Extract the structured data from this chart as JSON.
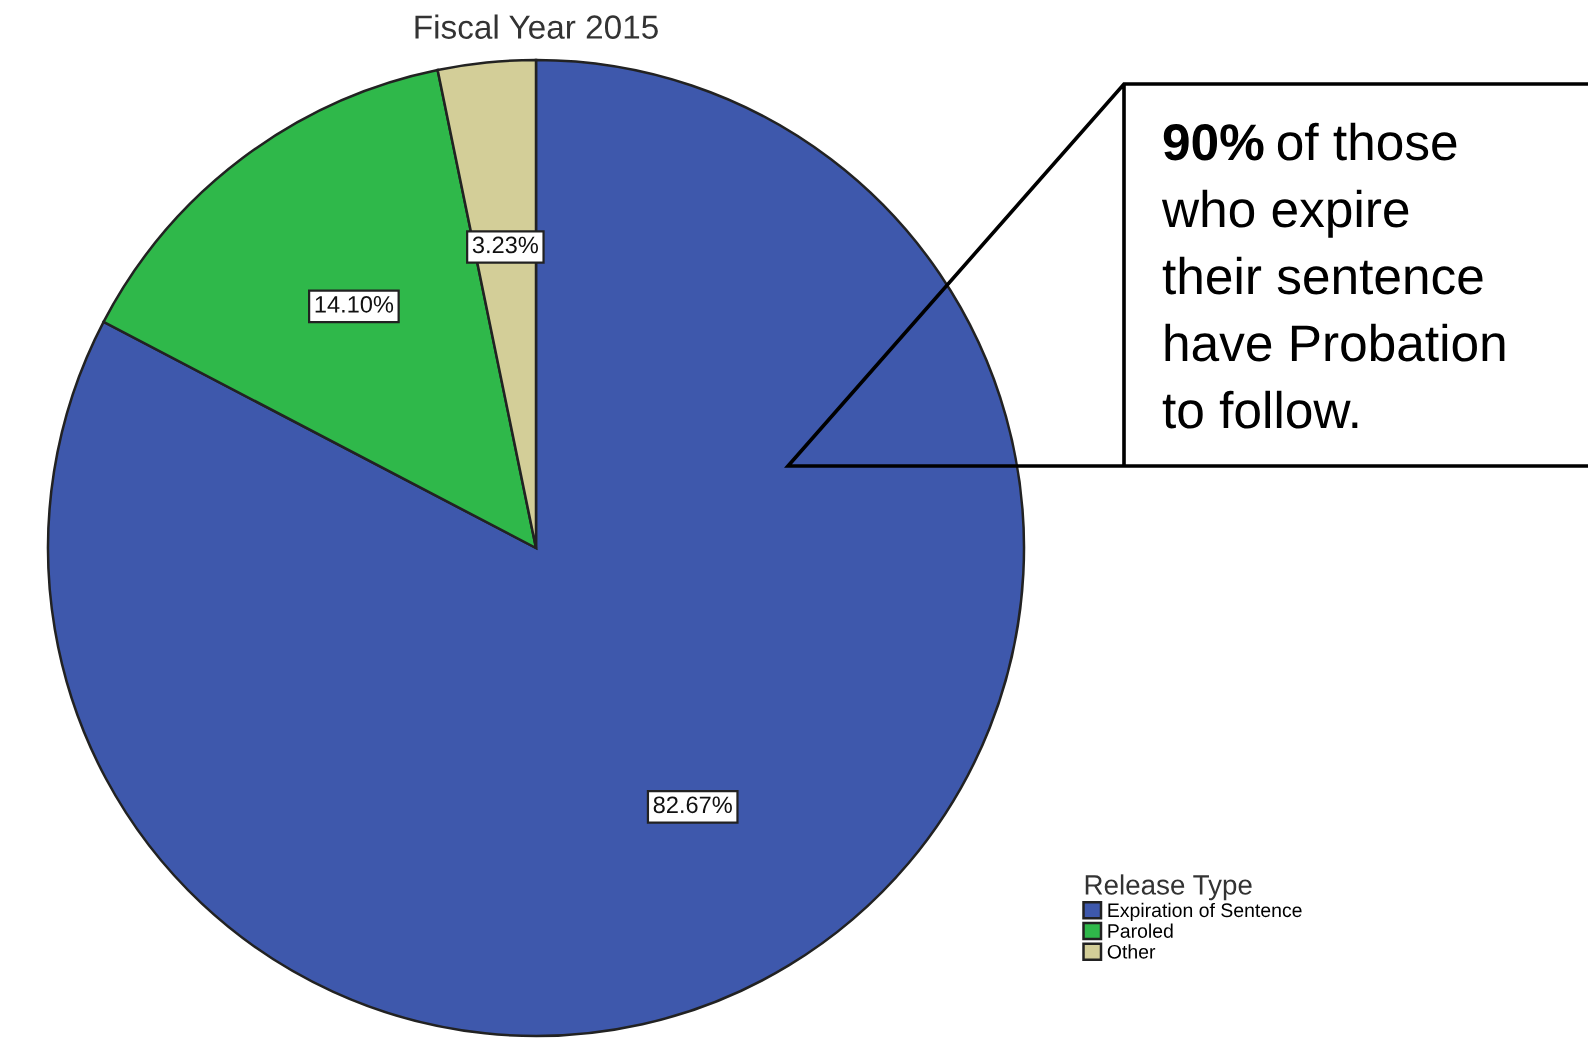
{
  "chart_data": {
    "type": "pie",
    "title": "Fiscal Year 2015",
    "categories": [
      "Expiration of Sentence",
      "Paroled",
      "Other"
    ],
    "values": [
      82.67,
      14.1,
      3.23
    ],
    "colors": [
      "#3e58ac",
      "#2fb84a",
      "#d3ce98"
    ],
    "value_labels": [
      "82.67%",
      "14.10%",
      "3.23%"
    ],
    "legend": "bottom right",
    "legend_title": "Release Type",
    "annotations": [
      "90% of those\nwho expire\ntheir sentence\nhave Probation\nto follow."
    ]
  }
}
